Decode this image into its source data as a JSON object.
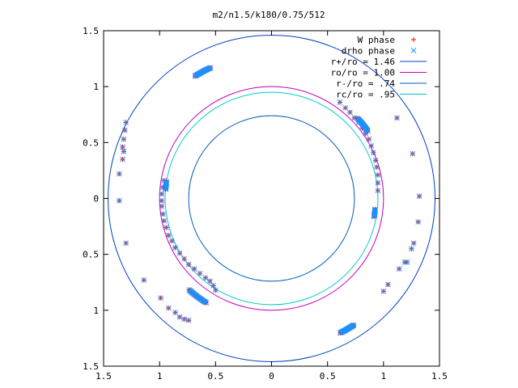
{
  "chart_data": {
    "type": "scatter",
    "title": "m2/n1.5/k180/0.75/512",
    "xlabel": "",
    "ylabel": "",
    "xlim": [
      -1.5,
      1.5
    ],
    "ylim": [
      -1.5,
      1.5
    ],
    "grid": false,
    "legend_position": "top-right",
    "x_ticks": [
      {
        "value": -1.5,
        "label": "1.5"
      },
      {
        "value": -1.0,
        "label": "1"
      },
      {
        "value": -0.5,
        "label": "0.5"
      },
      {
        "value": 0.0,
        "label": "0"
      },
      {
        "value": 0.5,
        "label": "0.5"
      },
      {
        "value": 1.0,
        "label": "1"
      },
      {
        "value": 1.5,
        "label": "1.5"
      }
    ],
    "y_ticks": [
      {
        "value": 1.5,
        "label": "1.5"
      },
      {
        "value": 1.0,
        "label": "1"
      },
      {
        "value": 0.5,
        "label": "0.5"
      },
      {
        "value": 0.0,
        "label": "0"
      },
      {
        "value": -0.5,
        "label": "0.5"
      },
      {
        "value": -1.0,
        "label": "1"
      },
      {
        "value": -1.5,
        "label": "1.5"
      }
    ],
    "circles": [
      {
        "name": "r+/ro = 1.46",
        "radius": 1.46,
        "color": "#0040c0"
      },
      {
        "name": "ro/ro = 1.00",
        "radius": 1.0,
        "color": "#c000c0"
      },
      {
        "name": "r-/ro = .74",
        "radius": 0.74,
        "color": "#0060c0"
      },
      {
        "name": "rc/ro = .95",
        "radius": 0.95,
        "color": "#00c8c8"
      }
    ],
    "series": [
      {
        "name": "W phase",
        "marker": "plus",
        "color": "#ff0000",
        "dense_arcs": [
          {
            "r": 1.29,
            "a0": 122,
            "a1": 115
          },
          {
            "r": 1.35,
            "a0": 303,
            "a1": 297
          },
          {
            "r": 0.95,
            "a0": 171,
            "a1": 175
          },
          {
            "r": 0.93,
            "a0": 354,
            "a1": 350
          },
          {
            "r": 1.05,
            "a0": 43,
            "a1": 35
          },
          {
            "r": 1.1,
            "a0": 238,
            "a1": 228
          }
        ],
        "points": [
          [
            -1.3,
            0.68
          ],
          [
            -1.31,
            0.61
          ],
          [
            -1.32,
            0.53
          ],
          [
            -1.33,
            0.46
          ],
          [
            -1.32,
            0.42
          ],
          [
            -1.33,
            0.35
          ],
          [
            -1.36,
            0.22
          ],
          [
            -1.36,
            -0.02
          ],
          [
            -1.3,
            -0.4
          ],
          [
            -1.14,
            -0.73
          ],
          [
            -0.99,
            -0.89
          ],
          [
            -0.92,
            -0.98
          ],
          [
            -0.86,
            -1.02
          ],
          [
            -0.82,
            -1.06
          ],
          [
            -0.78,
            -1.08
          ],
          [
            -0.74,
            -1.09
          ],
          [
            -0.96,
            0.16
          ],
          [
            -0.97,
            0.1
          ],
          [
            -0.98,
            0.04
          ],
          [
            -0.98,
            -0.02
          ],
          [
            -0.98,
            -0.07
          ],
          [
            -0.97,
            -0.14
          ],
          [
            -0.96,
            -0.2
          ],
          [
            -0.94,
            -0.26
          ],
          [
            -0.92,
            -0.33
          ],
          [
            -0.89,
            -0.38
          ],
          [
            -0.86,
            -0.44
          ],
          [
            -0.82,
            -0.49
          ],
          [
            -0.78,
            -0.54
          ],
          [
            -0.74,
            -0.59
          ],
          [
            -0.69,
            -0.63
          ],
          [
            -0.64,
            -0.67
          ],
          [
            -0.59,
            -0.71
          ],
          [
            -0.55,
            -0.74
          ],
          [
            -0.52,
            -0.78
          ],
          [
            -0.5,
            -0.82
          ],
          [
            0.61,
            0.86
          ],
          [
            0.66,
            0.81
          ],
          [
            0.7,
            0.77
          ],
          [
            0.74,
            0.72
          ],
          [
            0.78,
            0.68
          ],
          [
            0.81,
            0.63
          ],
          [
            0.84,
            0.58
          ],
          [
            0.87,
            0.53
          ],
          [
            0.89,
            0.47
          ],
          [
            0.91,
            0.41
          ],
          [
            0.93,
            0.34
          ],
          [
            0.94,
            0.28
          ],
          [
            0.95,
            0.21
          ],
          [
            0.95,
            0.14
          ],
          [
            0.95,
            0.07
          ],
          [
            1.12,
            0.72
          ],
          [
            1.26,
            0.4
          ],
          [
            1.32,
            0.02
          ],
          [
            1.31,
            -0.21
          ],
          [
            1.27,
            -0.4
          ],
          [
            1.25,
            -0.45
          ],
          [
            1.19,
            -0.57
          ],
          [
            1.14,
            -0.63
          ],
          [
            1.04,
            -0.77
          ],
          [
            1.0,
            -0.83
          ],
          [
            1.21,
            -0.57
          ]
        ]
      },
      {
        "name": "drho phase",
        "marker": "cross",
        "color": "#1e90ff",
        "dense_arcs": [
          {
            "r": 1.29,
            "a0": 122,
            "a1": 115
          },
          {
            "r": 1.35,
            "a0": 303,
            "a1": 297
          },
          {
            "r": 0.95,
            "a0": 171,
            "a1": 175
          },
          {
            "r": 0.93,
            "a0": 354,
            "a1": 350
          },
          {
            "r": 1.05,
            "a0": 43,
            "a1": 35
          },
          {
            "r": 1.1,
            "a0": 238,
            "a1": 228
          }
        ],
        "points": [
          [
            -1.3,
            0.68
          ],
          [
            -1.31,
            0.61
          ],
          [
            -1.32,
            0.53
          ],
          [
            -1.33,
            0.46
          ],
          [
            -1.32,
            0.42
          ],
          [
            -1.33,
            0.35
          ],
          [
            -1.36,
            0.22
          ],
          [
            -1.36,
            -0.02
          ],
          [
            -1.3,
            -0.4
          ],
          [
            -1.14,
            -0.73
          ],
          [
            -0.99,
            -0.89
          ],
          [
            -0.92,
            -0.98
          ],
          [
            -0.86,
            -1.02
          ],
          [
            -0.82,
            -1.06
          ],
          [
            -0.78,
            -1.08
          ],
          [
            -0.74,
            -1.09
          ],
          [
            -0.96,
            0.16
          ],
          [
            -0.97,
            0.1
          ],
          [
            -0.98,
            0.04
          ],
          [
            -0.98,
            -0.02
          ],
          [
            -0.98,
            -0.07
          ],
          [
            -0.97,
            -0.14
          ],
          [
            -0.96,
            -0.2
          ],
          [
            -0.94,
            -0.26
          ],
          [
            -0.92,
            -0.33
          ],
          [
            -0.89,
            -0.38
          ],
          [
            -0.86,
            -0.44
          ],
          [
            -0.82,
            -0.49
          ],
          [
            -0.78,
            -0.54
          ],
          [
            -0.74,
            -0.59
          ],
          [
            -0.69,
            -0.63
          ],
          [
            -0.64,
            -0.67
          ],
          [
            -0.59,
            -0.71
          ],
          [
            -0.55,
            -0.74
          ],
          [
            -0.52,
            -0.78
          ],
          [
            -0.5,
            -0.82
          ],
          [
            0.61,
            0.86
          ],
          [
            0.66,
            0.81
          ],
          [
            0.7,
            0.77
          ],
          [
            0.74,
            0.72
          ],
          [
            0.78,
            0.68
          ],
          [
            0.81,
            0.63
          ],
          [
            0.84,
            0.58
          ],
          [
            0.87,
            0.53
          ],
          [
            0.89,
            0.47
          ],
          [
            0.91,
            0.41
          ],
          [
            0.93,
            0.34
          ],
          [
            0.94,
            0.28
          ],
          [
            0.95,
            0.21
          ],
          [
            0.95,
            0.14
          ],
          [
            0.95,
            0.07
          ],
          [
            1.12,
            0.72
          ],
          [
            1.26,
            0.4
          ],
          [
            1.32,
            0.02
          ],
          [
            1.31,
            -0.21
          ],
          [
            1.27,
            -0.4
          ],
          [
            1.25,
            -0.45
          ],
          [
            1.19,
            -0.57
          ],
          [
            1.14,
            -0.63
          ],
          [
            1.04,
            -0.77
          ],
          [
            1.0,
            -0.83
          ],
          [
            1.21,
            -0.57
          ]
        ]
      }
    ]
  }
}
